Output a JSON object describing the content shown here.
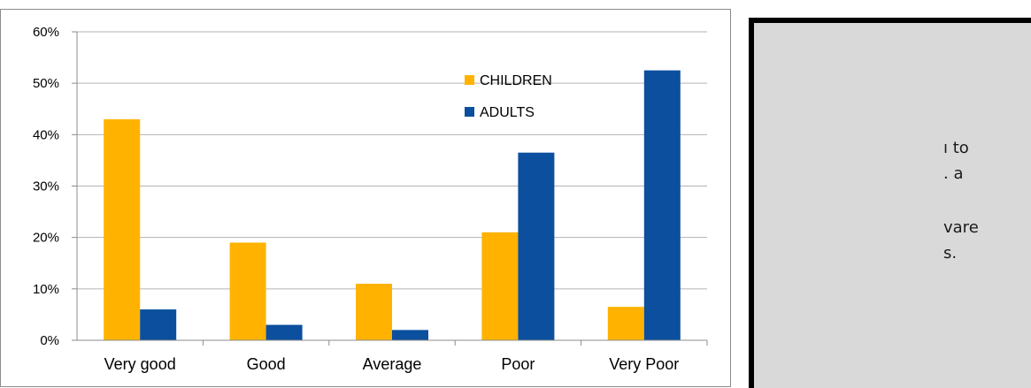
{
  "chart_data": {
    "type": "bar",
    "categories": [
      "Very good",
      "Good",
      "Average",
      "Poor",
      "Very Poor"
    ],
    "series": [
      {
        "name": "CHILDREN",
        "values": [
          43,
          19,
          11,
          21,
          6.5
        ],
        "color": "#ffb300"
      },
      {
        "name": "ADULTS",
        "values": [
          6,
          3,
          2,
          36.5,
          52.5
        ],
        "color": "#0b4f9e"
      }
    ],
    "ylim": [
      0,
      60
    ],
    "yticks": [
      "0%",
      "10%",
      "20%",
      "30%",
      "40%",
      "50%",
      "60%"
    ],
    "grid": true,
    "legend": "top-right"
  },
  "side_panel": {
    "lines": [
      "ı to",
      ". a",
      "vare",
      "s."
    ]
  }
}
